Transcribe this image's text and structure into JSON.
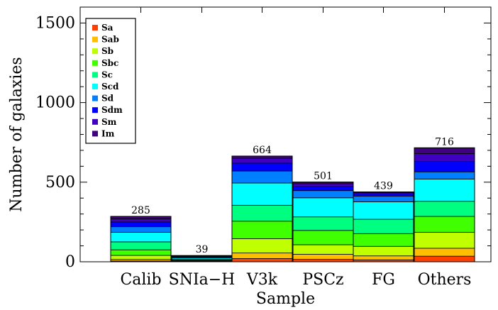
{
  "chart_data": {
    "type": "bar",
    "stacked": true,
    "title": "",
    "xlabel": "Sample",
    "ylabel": "Number of galaxies",
    "ylim": [
      0,
      1600
    ],
    "yticks": [
      0,
      500,
      1000,
      1500
    ],
    "legend_position": "top-left",
    "categories": [
      "Calib",
      "SNIa−H",
      "V3k",
      "PSCz",
      "FG",
      "Others"
    ],
    "totals": [
      285,
      39,
      664,
      501,
      439,
      716
    ],
    "series": [
      {
        "name": "Sa",
        "color": "#ff4000",
        "values": [
          5,
          2,
          20,
          15,
          12,
          35
        ]
      },
      {
        "name": "Sab",
        "color": "#ffbf00",
        "values": [
          10,
          2,
          35,
          32,
          25,
          50
        ]
      },
      {
        "name": "Sb",
        "color": "#bfff00",
        "values": [
          25,
          3,
          90,
          60,
          60,
          100
        ]
      },
      {
        "name": "Sbc",
        "color": "#3fff00",
        "values": [
          35,
          4,
          110,
          90,
          80,
          100
        ]
      },
      {
        "name": "Sc",
        "color": "#00ff80",
        "values": [
          50,
          6,
          100,
          85,
          90,
          95
        ]
      },
      {
        "name": "Scd",
        "color": "#00ffff",
        "values": [
          60,
          8,
          140,
          120,
          110,
          140
        ]
      },
      {
        "name": "Sd",
        "color": "#0080ff",
        "values": [
          35,
          5,
          75,
          45,
          35,
          45
        ]
      },
      {
        "name": "Sdm",
        "color": "#0000ff",
        "values": [
          30,
          4,
          50,
          25,
          15,
          65
        ]
      },
      {
        "name": "Sm",
        "color": "#4000c0",
        "values": [
          20,
          3,
          30,
          18,
          8,
          50
        ]
      },
      {
        "name": "Im",
        "color": "#400080",
        "values": [
          15,
          2,
          14,
          11,
          4,
          36
        ]
      }
    ]
  }
}
